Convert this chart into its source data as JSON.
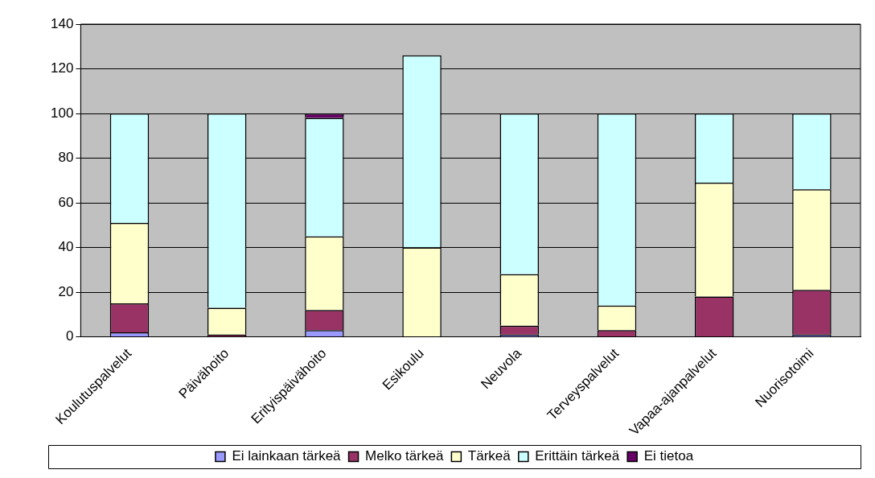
{
  "chart_data": {
    "type": "bar",
    "stacked": true,
    "categories": [
      "Koulutuspalvelut",
      "Päivähoito",
      "Erityispäivähoito",
      "Esikoulu",
      "Neuvola",
      "Terveyspalvelut",
      "Vapaa-ajanpalvelut",
      "Nuorisotoimi"
    ],
    "series": [
      {
        "name": "Ei lainkaan tärkeä",
        "color": "#9999ff",
        "values": [
          2,
          0,
          3,
          0,
          1,
          0,
          0,
          1
        ]
      },
      {
        "name": "Melko tärkeä",
        "color": "#993366",
        "values": [
          13,
          1,
          9,
          0,
          4,
          3,
          18,
          20
        ]
      },
      {
        "name": "Tärkeä",
        "color": "#ffffcc",
        "values": [
          36,
          12,
          33,
          40,
          23,
          11,
          51,
          45
        ]
      },
      {
        "name": "Erittäin tärkeä",
        "color": "#ccffff",
        "values": [
          49,
          87,
          53,
          86,
          72,
          86,
          31,
          34
        ]
      },
      {
        "name": "Ei tietoa",
        "color": "#660066",
        "values": [
          0,
          0,
          2,
          0,
          0,
          0,
          0,
          0
        ]
      }
    ],
    "ylim": [
      0,
      140
    ],
    "yticks": [
      0,
      20,
      40,
      60,
      80,
      100,
      120,
      140
    ],
    "grid": "y",
    "legend": "bottom"
  }
}
